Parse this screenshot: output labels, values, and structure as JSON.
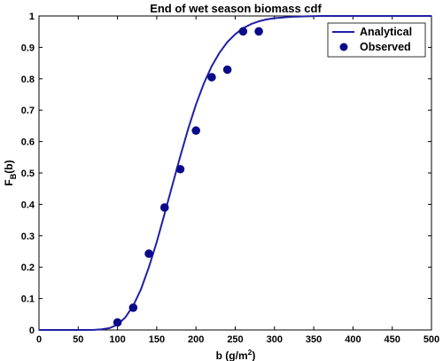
{
  "chart_data": {
    "type": "line",
    "title": "End of wet season biomass cdf",
    "xlabel": {
      "main": "b (g/m",
      "sup": "2",
      "tail": ")"
    },
    "ylabel": {
      "main": "F",
      "sub": "B",
      "tail": "(b)"
    },
    "xlim": [
      0,
      500
    ],
    "ylim": [
      0,
      1
    ],
    "xticks": [
      0,
      50,
      100,
      150,
      200,
      250,
      300,
      350,
      400,
      450,
      500
    ],
    "yticks": [
      0,
      0.1,
      0.2,
      0.3,
      0.4,
      0.5,
      0.6,
      0.7,
      0.8,
      0.9,
      1
    ],
    "ytick_labels": [
      "0",
      "0.1",
      "0.2",
      "0.3",
      "0.4",
      "0.5",
      "0.6",
      "0.7",
      "0.8",
      "0.9",
      "1"
    ],
    "grid": false,
    "legend_position": "top-right",
    "series": [
      {
        "name": "Analytical",
        "kind": "line",
        "color": "#1f1fa8",
        "x": [
          0,
          20,
          40,
          60,
          70,
          80,
          90,
          100,
          110,
          120,
          130,
          140,
          150,
          160,
          170,
          180,
          190,
          200,
          210,
          220,
          230,
          240,
          250,
          260,
          270,
          280,
          290,
          300,
          320,
          340,
          360,
          380,
          400,
          450,
          500
        ],
        "y": [
          0,
          0,
          0,
          0,
          0.0005,
          0.002,
          0.006,
          0.017,
          0.04,
          0.077,
          0.13,
          0.2,
          0.28,
          0.37,
          0.462,
          0.553,
          0.64,
          0.718,
          0.785,
          0.84,
          0.883,
          0.917,
          0.942,
          0.961,
          0.974,
          0.983,
          0.989,
          0.993,
          0.997,
          0.999,
          1,
          1,
          1,
          1,
          1
        ]
      },
      {
        "name": "Observed",
        "kind": "scatter",
        "color": "#0a0a8a",
        "x": [
          100,
          120,
          140,
          160,
          180,
          200,
          220,
          240,
          260,
          280
        ],
        "y": [
          0.024,
          0.071,
          0.243,
          0.39,
          0.512,
          0.635,
          0.805,
          0.829,
          0.951,
          0.951
        ]
      }
    ]
  }
}
